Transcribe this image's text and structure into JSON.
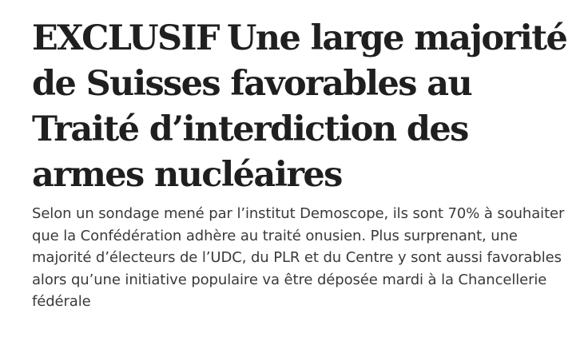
{
  "article": {
    "tag": "EXCLUSIF",
    "title": "Une large majorité de Suisses favorables au Traité d’interdiction des armes nucléaires",
    "lead": "Selon un sondage mené par l’institut Demoscope, ils sont 70% à souhaiter que la Confédération adhère au traité onusien. Plus surprenant, une majorité d’électeurs de l’UDC, du PLR et du Centre y sont aussi favorables alors qu’une initiative populaire va être déposée mardi à la Chancellerie fédérale"
  }
}
